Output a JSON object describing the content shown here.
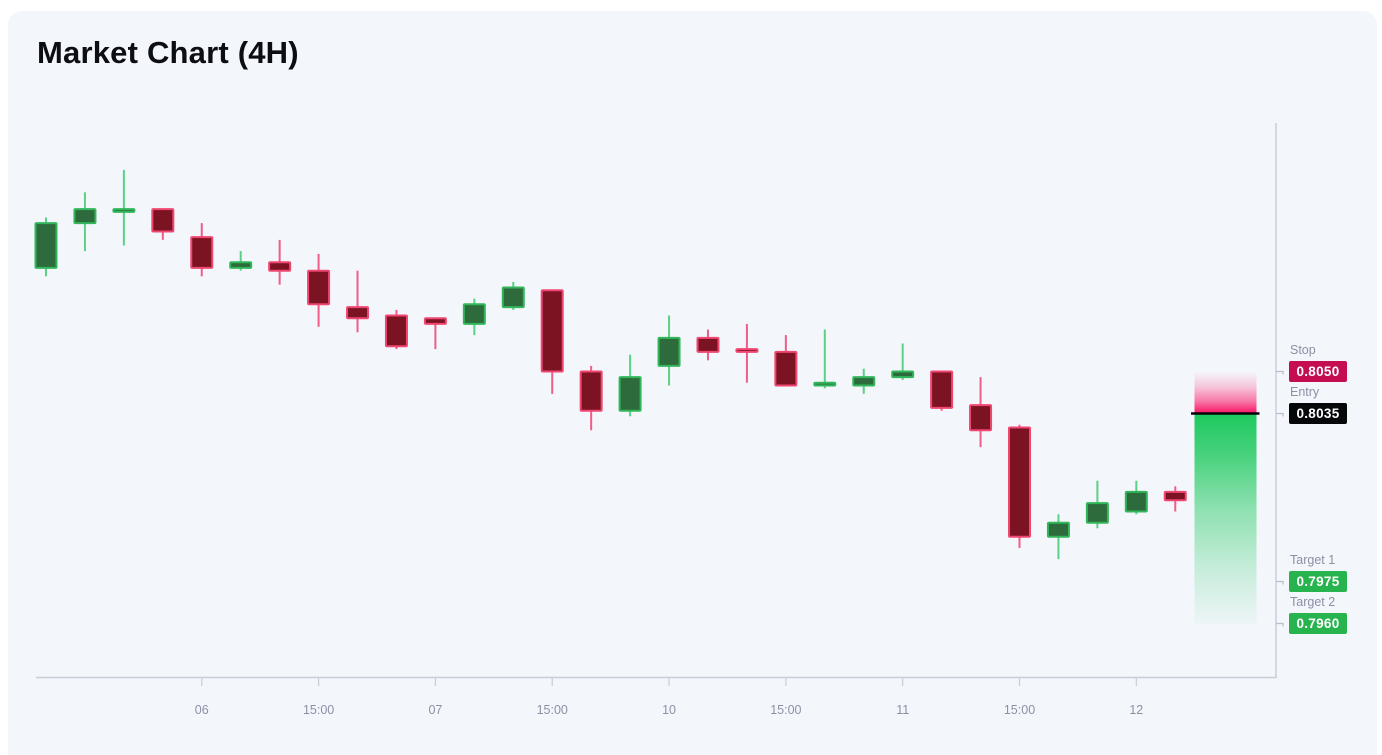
{
  "page": {
    "title": "Market Chart (4H)"
  },
  "annotations": {
    "stop": {
      "label": "Stop",
      "value": "0.8050",
      "price": 0.805,
      "color": "#c40d52"
    },
    "entry": {
      "label": "Entry",
      "value": "0.8035",
      "price": 0.8035,
      "color": "#060709"
    },
    "target1": {
      "label": "Target 1",
      "value": "0.7975",
      "price": 0.7975,
      "color": "#27b44e"
    },
    "target2": {
      "label": "Target 2",
      "value": "0.7960",
      "price": 0.796,
      "color": "#27b44e"
    }
  },
  "colors": {
    "page_bg": "#ffffff",
    "card_bg": "#f3f6fb",
    "title": "#0c0e13",
    "axis": "#c9cdd9",
    "tick_label": "#8b90a4",
    "notch": "#b9bdc9",
    "up_fill": "#2d6b3c",
    "up_stroke": "#31b75a",
    "up_wick": "#5ad184",
    "down_fill": "#7c1322",
    "down_stroke": "#ef4672",
    "down_wick": "#f25c88",
    "zone_pink": "#fb1464",
    "zone_green": "#1ec95e",
    "entry_line": "#05060a",
    "badge_text": "#ffffff"
  },
  "chart_data": {
    "type": "candlestick",
    "title": "Market Chart (4H)",
    "timeframe": "4H",
    "price_range_visible": [
      0.794,
      0.8128
    ],
    "levels": {
      "stop": 0.805,
      "entry": 0.8035,
      "target1": 0.7975,
      "target2": 0.796
    },
    "risk_zone": {
      "from_price": 0.805,
      "to_price": 0.8035
    },
    "reward_zone": {
      "from_price": 0.8035,
      "to_price": 0.796
    },
    "x_ticks": [
      {
        "i": 4,
        "label": "06"
      },
      {
        "i": 7,
        "label": "15:00"
      },
      {
        "i": 10,
        "label": "07"
      },
      {
        "i": 13,
        "label": "15:00"
      },
      {
        "i": 16,
        "label": "10"
      },
      {
        "i": 19,
        "label": "15:00"
      },
      {
        "i": 22,
        "label": "11"
      },
      {
        "i": 25,
        "label": "15:00"
      },
      {
        "i": 28,
        "label": "12"
      }
    ],
    "candles": [
      {
        "o": 0.8087,
        "h": 0.8105,
        "l": 0.8084,
        "c": 0.8103
      },
      {
        "o": 0.8103,
        "h": 0.8114,
        "l": 0.8093,
        "c": 0.8108
      },
      {
        "o": 0.8107,
        "h": 0.8122,
        "l": 0.8095,
        "c": 0.8108
      },
      {
        "o": 0.8108,
        "h": 0.8108,
        "l": 0.8097,
        "c": 0.81
      },
      {
        "o": 0.8098,
        "h": 0.8103,
        "l": 0.8084,
        "c": 0.8087
      },
      {
        "o": 0.8087,
        "h": 0.8093,
        "l": 0.8086,
        "c": 0.8089
      },
      {
        "o": 0.8089,
        "h": 0.8097,
        "l": 0.8081,
        "c": 0.8086
      },
      {
        "o": 0.8086,
        "h": 0.8092,
        "l": 0.8066,
        "c": 0.8074
      },
      {
        "o": 0.8073,
        "h": 0.8086,
        "l": 0.8064,
        "c": 0.8069
      },
      {
        "o": 0.807,
        "h": 0.8072,
        "l": 0.8058,
        "c": 0.8059
      },
      {
        "o": 0.8069,
        "h": 0.8069,
        "l": 0.8058,
        "c": 0.8067
      },
      {
        "o": 0.8067,
        "h": 0.8076,
        "l": 0.8063,
        "c": 0.8074
      },
      {
        "o": 0.8073,
        "h": 0.8082,
        "l": 0.8072,
        "c": 0.808
      },
      {
        "o": 0.8079,
        "h": 0.8079,
        "l": 0.8042,
        "c": 0.805
      },
      {
        "o": 0.805,
        "h": 0.8052,
        "l": 0.8029,
        "c": 0.8036
      },
      {
        "o": 0.8036,
        "h": 0.8056,
        "l": 0.8034,
        "c": 0.8048
      },
      {
        "o": 0.8052,
        "h": 0.807,
        "l": 0.8045,
        "c": 0.8062
      },
      {
        "o": 0.8062,
        "h": 0.8065,
        "l": 0.8054,
        "c": 0.8057
      },
      {
        "o": 0.8058,
        "h": 0.8067,
        "l": 0.8046,
        "c": 0.8057
      },
      {
        "o": 0.8057,
        "h": 0.8063,
        "l": 0.8045,
        "c": 0.8045
      },
      {
        "o": 0.8045,
        "h": 0.8065,
        "l": 0.8044,
        "c": 0.8046
      },
      {
        "o": 0.8045,
        "h": 0.8051,
        "l": 0.8042,
        "c": 0.8048
      },
      {
        "o": 0.8048,
        "h": 0.806,
        "l": 0.8047,
        "c": 0.805
      },
      {
        "o": 0.805,
        "h": 0.805,
        "l": 0.8036,
        "c": 0.8037
      },
      {
        "o": 0.8038,
        "h": 0.8048,
        "l": 0.8023,
        "c": 0.8029
      },
      {
        "o": 0.803,
        "h": 0.8031,
        "l": 0.7987,
        "c": 0.7991
      },
      {
        "o": 0.7991,
        "h": 0.7999,
        "l": 0.7983,
        "c": 0.7996
      },
      {
        "o": 0.7996,
        "h": 0.8011,
        "l": 0.7994,
        "c": 0.8003
      },
      {
        "o": 0.8,
        "h": 0.8011,
        "l": 0.7999,
        "c": 0.8007
      },
      {
        "o": 0.8007,
        "h": 0.8009,
        "l": 0.8,
        "c": 0.8004
      }
    ]
  }
}
